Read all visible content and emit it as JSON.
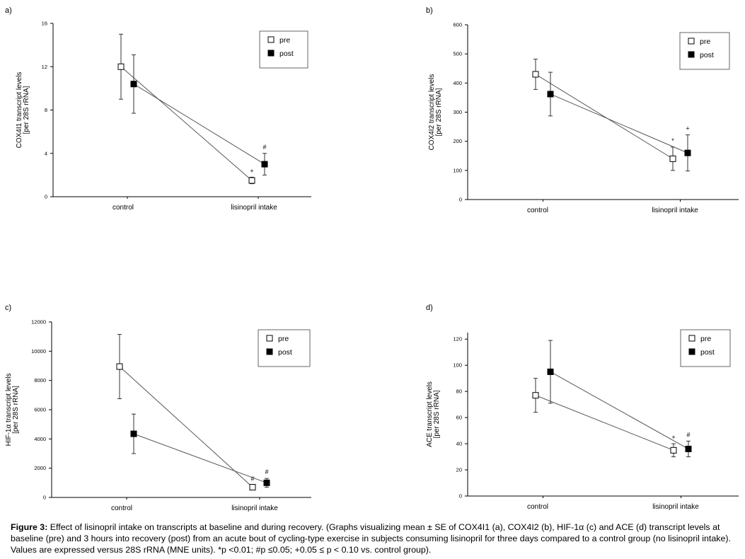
{
  "chart_data": [
    {
      "type": "line",
      "panel_label": "a)",
      "ylabel_lines": [
        "COX4I1 transcript levels",
        "[per 28S rRNA]"
      ],
      "categories": [
        "control",
        "lisinopril intake"
      ],
      "ylim": [
        0,
        16
      ],
      "yticks": [
        "0",
        "4",
        "8",
        "12",
        "16"
      ],
      "legend": {
        "items": [
          "pre",
          "post"
        ],
        "position": "top-right"
      },
      "series": [
        {
          "name": "pre",
          "marker": "open-square",
          "values": [
            12.0,
            1.5
          ],
          "err": [
            3.0,
            0.3
          ]
        },
        {
          "name": "post",
          "marker": "filled-square",
          "values": [
            10.4,
            3.0
          ],
          "err": [
            2.7,
            1.0
          ]
        }
      ],
      "annotations": [
        {
          "text": "+",
          "series": "pre",
          "category": "lisinopril intake"
        },
        {
          "text": "#",
          "series": "post",
          "category": "lisinopril intake"
        }
      ]
    },
    {
      "type": "line",
      "panel_label": "b)",
      "ylabel_lines": [
        "COX4I2 transcript levels",
        "[per 28S rRNA]"
      ],
      "categories": [
        "control",
        "lisinopril intake"
      ],
      "ylim": [
        0,
        600
      ],
      "yticks": [
        "0",
        "100",
        "200",
        "300",
        "400",
        "500",
        "600"
      ],
      "legend": {
        "items": [
          "pre",
          "post"
        ],
        "position": "top-right"
      },
      "series": [
        {
          "name": "pre",
          "marker": "open-square",
          "values": [
            430,
            140
          ],
          "err": [
            52,
            40
          ]
        },
        {
          "name": "post",
          "marker": "filled-square",
          "values": [
            362,
            160
          ],
          "err": [
            75,
            62
          ]
        }
      ],
      "annotations": [
        {
          "text": "*",
          "series": "pre",
          "category": "lisinopril intake"
        },
        {
          "text": "+",
          "series": "post",
          "category": "lisinopril intake"
        }
      ]
    },
    {
      "type": "line",
      "panel_label": "c)",
      "ylabel_lines": [
        "HIF-1α transcript levels",
        "[per 28S rRNA]"
      ],
      "categories": [
        "control",
        "lisinopril intake"
      ],
      "ylim": [
        0,
        12000
      ],
      "yticks": [
        "0",
        "2000",
        "4000",
        "6000",
        "8000",
        "10000",
        "12000"
      ],
      "legend": {
        "items": [
          "pre",
          "post"
        ],
        "position": "top-right"
      },
      "series": [
        {
          "name": "pre",
          "marker": "open-square",
          "values": [
            8950,
            700
          ],
          "err": [
            2200,
            150
          ]
        },
        {
          "name": "post",
          "marker": "filled-square",
          "values": [
            4350,
            1000
          ],
          "err": [
            1350,
            300
          ]
        }
      ],
      "annotations": [
        {
          "text": "#",
          "series": "pre",
          "category": "lisinopril intake"
        },
        {
          "text": "#",
          "series": "post",
          "category": "lisinopril intake"
        }
      ]
    },
    {
      "type": "line",
      "panel_label": "d)",
      "ylabel_lines": [
        "ACE transcript levels",
        "[per 28S rRNA]"
      ],
      "categories": [
        "control",
        "lisinopril intake"
      ],
      "ylim": [
        0,
        125
      ],
      "yticks": [
        "0",
        "20",
        "40",
        "60",
        "80",
        "100",
        "120"
      ],
      "legend": {
        "items": [
          "pre",
          "post"
        ],
        "position": "top-right"
      },
      "series": [
        {
          "name": "pre",
          "marker": "open-square",
          "values": [
            77,
            35
          ],
          "err": [
            13,
            5
          ]
        },
        {
          "name": "post",
          "marker": "filled-square",
          "values": [
            95,
            36
          ],
          "err": [
            24,
            6
          ]
        }
      ],
      "annotations": [
        {
          "text": "+",
          "series": "pre",
          "category": "lisinopril intake"
        },
        {
          "text": "#",
          "series": "post",
          "category": "lisinopril intake"
        }
      ]
    }
  ],
  "caption": {
    "label": "Figure 3:",
    "text": " Effect of lisinopril intake on transcripts at baseline and during recovery. (Graphs visualizing mean ± SE of COX4I1 (a), COX4I2 (b), HIF-1α (c) and ACE (d) transcript levels at baseline (pre) and 3 hours into recovery (post) from an acute bout of cycling-type exercise in subjects consuming lisinopril for three days compared to a control group (no lisinopril intake). Values are expressed versus 28S rRNA (MNE units). *p <0.01; #p ≤0.05; +0.05 ≤ p < 0.10 vs. control group)."
  }
}
